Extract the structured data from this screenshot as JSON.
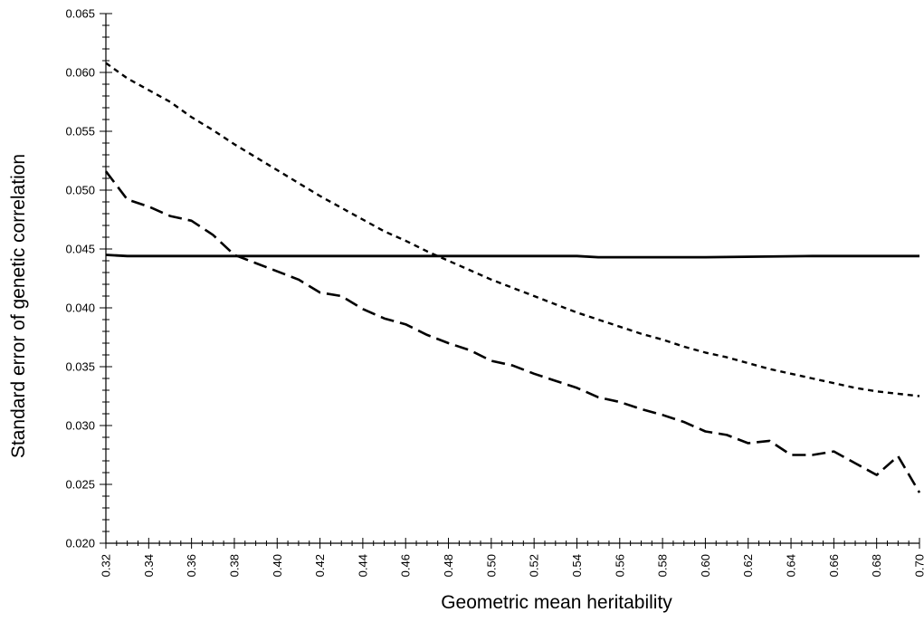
{
  "chart_data": {
    "type": "line",
    "xlabel": "Geometric mean heritability",
    "ylabel": "Standard error of genetic  correlation",
    "xlim": [
      0.32,
      0.7
    ],
    "ylim": [
      0.02,
      0.065
    ],
    "x_ticks": [
      "0.32",
      "0.34",
      "0.36",
      "0.38",
      "0.40",
      "0.42",
      "0.44",
      "0.46",
      "0.48",
      "0.50",
      "0.52",
      "0.54",
      "0.56",
      "0.58",
      "0.60",
      "0.62",
      "0.64",
      "0.66",
      "0.68",
      "0.70"
    ],
    "y_ticks": [
      "0.020",
      "0.025",
      "0.030",
      "0.035",
      "0.040",
      "0.045",
      "0.050",
      "0.055",
      "0.060",
      "0.065"
    ],
    "grid": false,
    "legend": "none",
    "series": [
      {
        "style": "solid",
        "points": [
          [
            0.32,
            0.0445
          ],
          [
            0.33,
            0.0444
          ],
          [
            0.4,
            0.0444
          ],
          [
            0.5,
            0.0444
          ],
          [
            0.54,
            0.0444
          ],
          [
            0.55,
            0.0443
          ],
          [
            0.6,
            0.0443
          ],
          [
            0.65,
            0.0444
          ],
          [
            0.7,
            0.0444
          ]
        ]
      },
      {
        "style": "long-dash",
        "points": [
          [
            0.32,
            0.0516
          ],
          [
            0.33,
            0.0492
          ],
          [
            0.34,
            0.0486
          ],
          [
            0.35,
            0.0478
          ],
          [
            0.36,
            0.0474
          ],
          [
            0.37,
            0.0462
          ],
          [
            0.38,
            0.0445
          ],
          [
            0.39,
            0.0438
          ],
          [
            0.4,
            0.0431
          ],
          [
            0.41,
            0.0424
          ],
          [
            0.42,
            0.0413
          ],
          [
            0.43,
            0.041
          ],
          [
            0.44,
            0.0399
          ],
          [
            0.45,
            0.0391
          ],
          [
            0.46,
            0.0386
          ],
          [
            0.47,
            0.0377
          ],
          [
            0.48,
            0.037
          ],
          [
            0.49,
            0.0364
          ],
          [
            0.5,
            0.0355
          ],
          [
            0.51,
            0.0351
          ],
          [
            0.52,
            0.0344
          ],
          [
            0.53,
            0.0338
          ],
          [
            0.54,
            0.0332
          ],
          [
            0.55,
            0.0324
          ],
          [
            0.56,
            0.032
          ],
          [
            0.57,
            0.0314
          ],
          [
            0.58,
            0.0309
          ],
          [
            0.59,
            0.0303
          ],
          [
            0.6,
            0.0295
          ],
          [
            0.61,
            0.0292
          ],
          [
            0.62,
            0.0285
          ],
          [
            0.63,
            0.0287
          ],
          [
            0.64,
            0.0275
          ],
          [
            0.65,
            0.0275
          ],
          [
            0.66,
            0.0278
          ],
          [
            0.67,
            0.0268
          ],
          [
            0.68,
            0.0258
          ],
          [
            0.69,
            0.0274
          ],
          [
            0.7,
            0.0243
          ]
        ]
      },
      {
        "style": "short-dash",
        "points": [
          [
            0.32,
            0.0608
          ],
          [
            0.33,
            0.0595
          ],
          [
            0.34,
            0.0585
          ],
          [
            0.35,
            0.0575
          ],
          [
            0.36,
            0.0562
          ],
          [
            0.37,
            0.0551
          ],
          [
            0.38,
            0.0539
          ],
          [
            0.39,
            0.0528
          ],
          [
            0.4,
            0.0517
          ],
          [
            0.41,
            0.0506
          ],
          [
            0.42,
            0.0495
          ],
          [
            0.43,
            0.0485
          ],
          [
            0.44,
            0.0475
          ],
          [
            0.45,
            0.0465
          ],
          [
            0.46,
            0.0457
          ],
          [
            0.47,
            0.0448
          ],
          [
            0.48,
            0.044
          ],
          [
            0.49,
            0.0432
          ],
          [
            0.5,
            0.0424
          ],
          [
            0.51,
            0.0417
          ],
          [
            0.52,
            0.041
          ],
          [
            0.53,
            0.0403
          ],
          [
            0.54,
            0.0396
          ],
          [
            0.55,
            0.039
          ],
          [
            0.56,
            0.0384
          ],
          [
            0.57,
            0.0378
          ],
          [
            0.58,
            0.0373
          ],
          [
            0.59,
            0.0367
          ],
          [
            0.6,
            0.0362
          ],
          [
            0.61,
            0.0358
          ],
          [
            0.62,
            0.0353
          ],
          [
            0.63,
            0.0348
          ],
          [
            0.64,
            0.0344
          ],
          [
            0.65,
            0.034
          ],
          [
            0.66,
            0.0336
          ],
          [
            0.67,
            0.0332
          ],
          [
            0.68,
            0.0329
          ],
          [
            0.69,
            0.0327
          ],
          [
            0.7,
            0.0325
          ]
        ]
      }
    ]
  }
}
